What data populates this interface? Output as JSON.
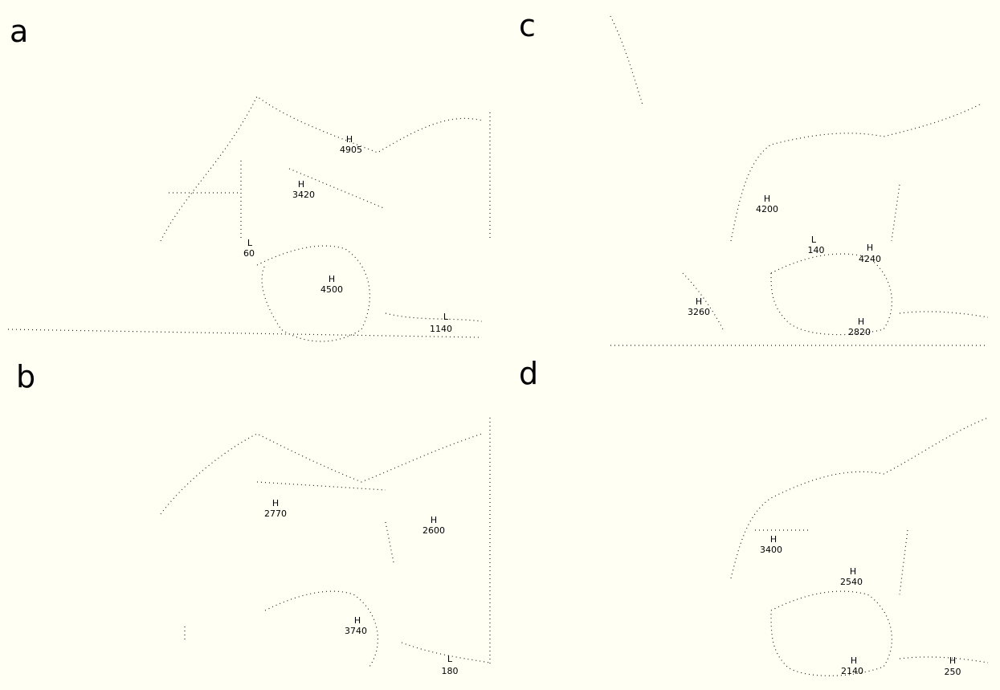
{
  "panels": [
    {
      "letter": "a",
      "systems": [
        {
          "kind": "H",
          "value": "4905"
        },
        {
          "kind": "H",
          "value": "3420"
        },
        {
          "kind": "L",
          "value": "60"
        },
        {
          "kind": "H",
          "value": "4500"
        },
        {
          "kind": "L",
          "value": "1140"
        }
      ]
    },
    {
      "letter": "b",
      "systems": [
        {
          "kind": "H",
          "value": "2770"
        },
        {
          "kind": "H",
          "value": "2600"
        },
        {
          "kind": "H",
          "value": "3740"
        },
        {
          "kind": "L",
          "value": "180"
        }
      ]
    },
    {
      "letter": "c",
      "systems": [
        {
          "kind": "H",
          "value": "4200"
        },
        {
          "kind": "L",
          "value": "140"
        },
        {
          "kind": "H",
          "value": "4240"
        },
        {
          "kind": "H",
          "value": "3260"
        },
        {
          "kind": "H",
          "value": "2820"
        }
      ]
    },
    {
      "letter": "d",
      "systems": [
        {
          "kind": "H",
          "value": "3400"
        },
        {
          "kind": "H",
          "value": "2540"
        },
        {
          "kind": "H",
          "value": "2140"
        },
        {
          "kind": "H",
          "value": "250"
        }
      ]
    }
  ]
}
